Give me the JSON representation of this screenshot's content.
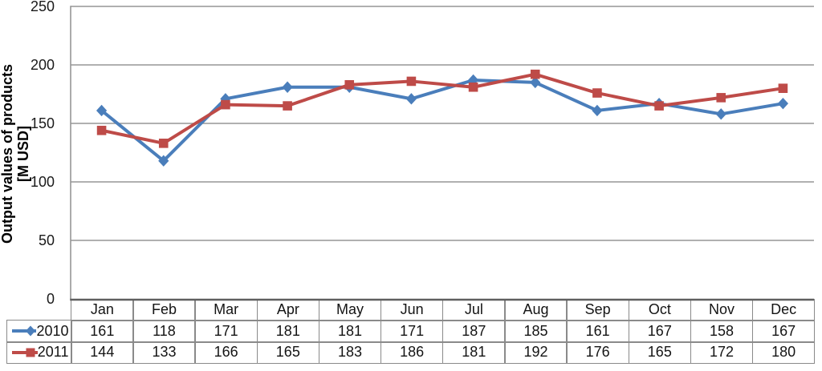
{
  "figure": {
    "y_axis_title_line1": "Output values of products",
    "y_axis_title_line2": "[M USD]"
  },
  "chart_data": {
    "type": "line",
    "title": "",
    "ylabel": "Output values of products [M USD]",
    "xlabel": "",
    "categories": [
      "Jan",
      "Feb",
      "Mar",
      "Apr",
      "May",
      "Jun",
      "Jul",
      "Aug",
      "Sep",
      "Oct",
      "Nov",
      "Dec"
    ],
    "series": [
      {
        "name": "2010",
        "color": "#4A7EBB",
        "marker": "diamond",
        "values": [
          161,
          118,
          171,
          181,
          181,
          171,
          187,
          185,
          161,
          167,
          158,
          167
        ]
      },
      {
        "name": "2011",
        "color": "#BE4B48",
        "marker": "square",
        "values": [
          144,
          133,
          166,
          165,
          183,
          186,
          181,
          192,
          176,
          165,
          172,
          180
        ]
      }
    ],
    "y_ticks": [
      0,
      50,
      100,
      150,
      200,
      250
    ],
    "ylim": [
      0,
      250
    ],
    "grid": true,
    "legend_position": "data-table-left",
    "data_table_shown": true,
    "colors": {
      "gridline": "#969696",
      "axis_line": "#5f5f5f",
      "table_border": "#8a8a8a",
      "text": "#141414"
    }
  }
}
